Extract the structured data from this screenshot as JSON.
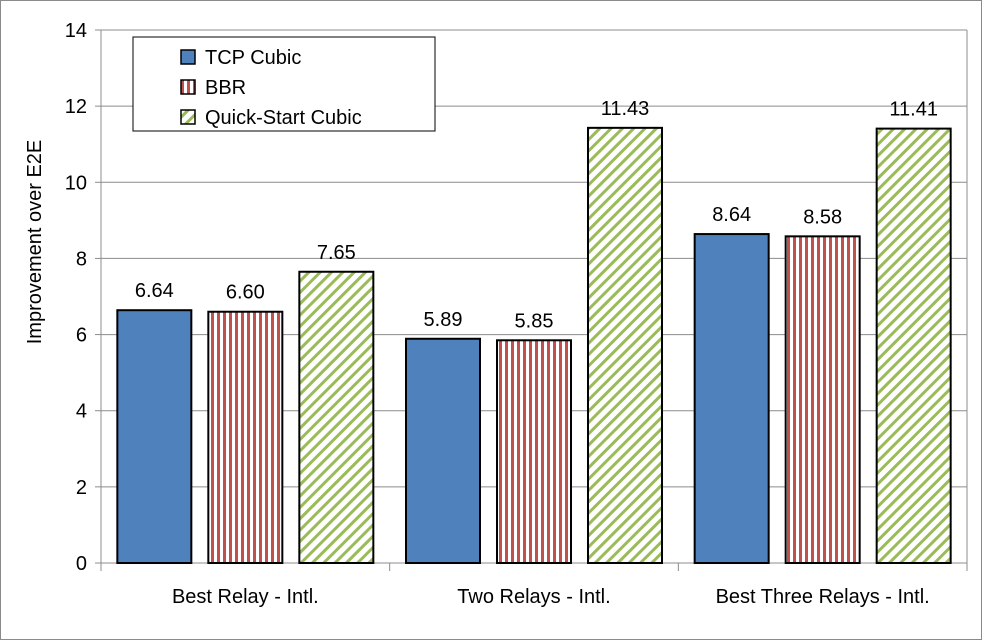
{
  "chart_data": {
    "type": "bar",
    "title": "",
    "xlabel": "",
    "ylabel": "Improvement over E2E",
    "ylim": [
      0,
      14
    ],
    "yticks": [
      0,
      2,
      4,
      6,
      8,
      10,
      12,
      14
    ],
    "grid": true,
    "legend_position": "top-left",
    "categories": [
      "Best Relay - Intl.",
      "Two Relays - Intl.",
      "Best Three Relays - Intl."
    ],
    "series": [
      {
        "name": "TCP Cubic",
        "values": [
          6.64,
          5.89,
          8.64
        ],
        "labels": [
          "6.64",
          "5.89",
          "8.64"
        ],
        "color": "#4f81bd",
        "pattern": "solid"
      },
      {
        "name": "BBR",
        "values": [
          6.6,
          5.85,
          8.58
        ],
        "labels": [
          "6.60",
          "5.85",
          "8.58"
        ],
        "color": "#c0504d",
        "pattern": "vertical-stripes"
      },
      {
        "name": "Quick-Start Cubic",
        "values": [
          7.65,
          11.43,
          11.41
        ],
        "labels": [
          "7.65",
          "11.43",
          "11.41"
        ],
        "color": "#9bbb59",
        "pattern": "diagonal-stripes"
      }
    ]
  }
}
